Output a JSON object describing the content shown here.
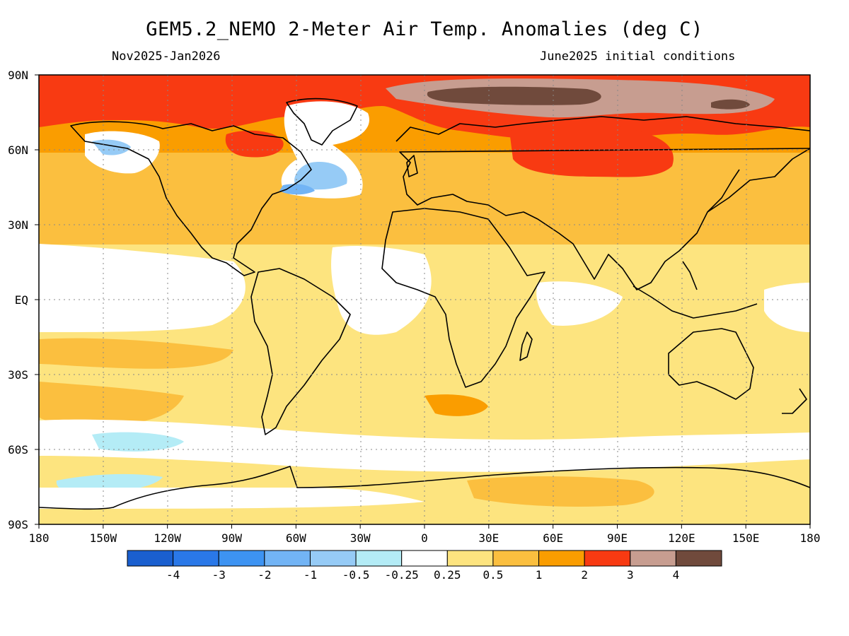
{
  "header": {
    "title": "GEM5.2_NEMO 2-Meter Air Temp. Anomalies (deg C)",
    "period": "Nov2025-Jan2026",
    "initial_conditions": "June2025 initial conditions"
  },
  "map": {
    "projection": "equirectangular",
    "lon_range": [
      -180,
      180
    ],
    "lat_range": [
      -90,
      90
    ],
    "lat_labels": [
      "90N",
      "60N",
      "30N",
      "EQ",
      "30S",
      "60S",
      "90S"
    ],
    "lon_labels": [
      "180",
      "150W",
      "120W",
      "90W",
      "60W",
      "30W",
      "0",
      "30E",
      "60E",
      "90E",
      "120E",
      "150E",
      "180"
    ],
    "grid": "dotted"
  },
  "legend": {
    "colors": [
      "#1a5fcf",
      "#2a78e8",
      "#3d93f2",
      "#72b4f5",
      "#96cbf6",
      "#b4ecf6",
      "#ffffff",
      "#fde47f",
      "#fbbf3f",
      "#fa9d00",
      "#f83a12",
      "#c79d90",
      "#704a3c"
    ],
    "labels": [
      "-4",
      "-3",
      "-2",
      "-1",
      "-0.5",
      "-0.25",
      "0.25",
      "0.5",
      "1",
      "2",
      "3",
      "4"
    ],
    "colors_meaning": "diverging: blue negative anomalies, white near zero, yellow-orange-red-brown positive anomalies"
  }
}
